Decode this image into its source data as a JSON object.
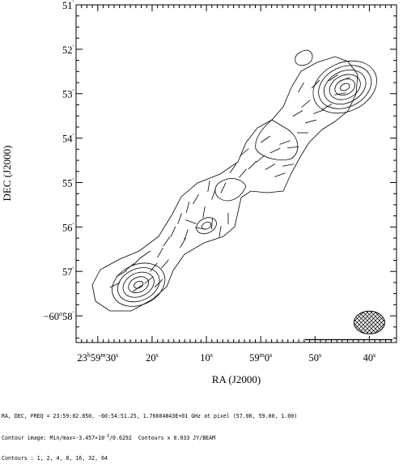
{
  "chart_data": {
    "type": "contour",
    "xlabel": "RA (J2000)",
    "ylabel": "DEC (J2000)",
    "x_ticks": [
      {
        "label_main": "23",
        "label_sup": "h",
        "label_main2": "59",
        "label_sup2": "m",
        "label_main3": "30",
        "label_sup3": "s",
        "ra_s": 30
      },
      {
        "label_main": "20",
        "label_sup": "s",
        "ra_s": 20
      },
      {
        "label_main": "10",
        "label_sup": "s",
        "ra_s": 10
      },
      {
        "label_main": "59",
        "label_sup": "m",
        "label_main2": "0",
        "label_sup2": "s",
        "ra_s": 0
      },
      {
        "label_main": "50",
        "label_sup": "s",
        "ra_s": -10
      },
      {
        "label_main": "40",
        "label_sup": "s",
        "ra_s": -20
      }
    ],
    "y_ticks": [
      {
        "label_main": "51",
        "label_sup": "'",
        "dec_arcmin": 51
      },
      {
        "label_main": "52",
        "label_sup": "'",
        "dec_arcmin": 52
      },
      {
        "label_main": "53",
        "label_sup": "'",
        "dec_arcmin": 53
      },
      {
        "label_main": "54",
        "label_sup": "'",
        "dec_arcmin": 54
      },
      {
        "label_main": "55",
        "label_sup": "'",
        "dec_arcmin": 55
      },
      {
        "label_main": "56",
        "label_sup": "'",
        "dec_arcmin": 56
      },
      {
        "label_main": "57",
        "label_sup": "'",
        "dec_arcmin": 57
      },
      {
        "label_main": "−60",
        "label_sup": "o",
        "label_main2": "58",
        "label_sup2": "'",
        "dec_arcmin": 58
      }
    ],
    "xlim_ra_s": [
      34,
      -25
    ],
    "ylim_dec_arcmin": [
      51,
      58.6
    ],
    "contour_levels": [
      1,
      2,
      4,
      8,
      16,
      32,
      64
    ],
    "contour_unit": 0.033,
    "sources": [
      {
        "name": "NE lobe",
        "ra_s": -15.5,
        "dec_arcmin": 52.85,
        "n_levels": 6
      },
      {
        "name": "core",
        "ra_s": 10,
        "dec_arcmin": 55.97,
        "n_levels": 2
      },
      {
        "name": "SW lobe",
        "ra_s": 22.5,
        "dec_arcmin": 57.3,
        "n_levels": 5
      }
    ],
    "scale_bar": true,
    "beam": {
      "ra_s": -20,
      "dec_arcmin": 58.15
    }
  },
  "footer": {
    "line1": "RA, DEC, FREQ = 23:59:02.850, -60:54:51.25, 1.76604843E+01 GHz at pixel (57.00, 59.00, 1.00)",
    "line2_pre": "Contour image: Min/max=-3.457×10",
    "line2_exp": "-3",
    "line2_post": "/0.6292  Contours x 0.033 JY/BEAM",
    "line3": "Contours : 1, 2, 4, 8, 16, 32, 64"
  }
}
